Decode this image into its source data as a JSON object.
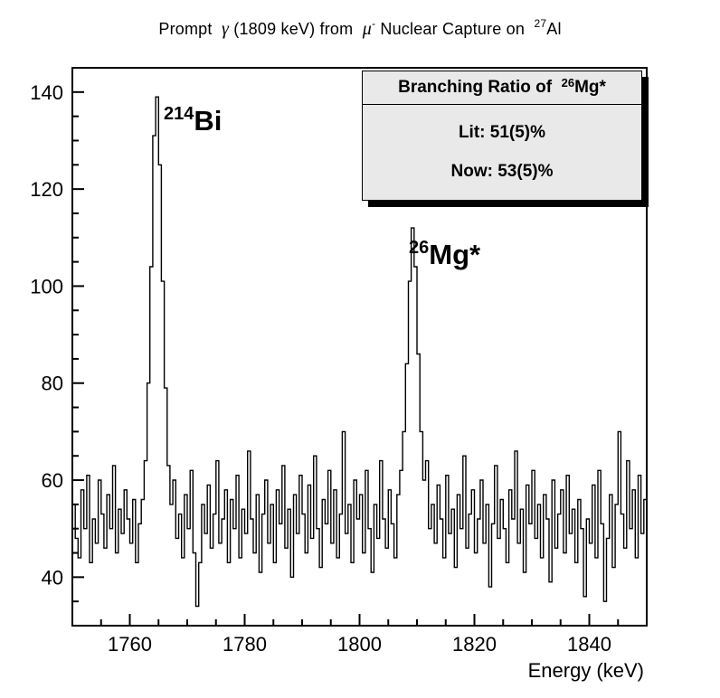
{
  "title": {
    "part1": "Prompt  ",
    "gamma": "γ",
    "part2": " (1809 keV) from  ",
    "mu": "μ",
    "mu_sup": "-",
    "part3": " Nuclear Capture on  ",
    "al_sup": "27",
    "part4": "Al"
  },
  "peak_labels": {
    "bi": {
      "sup": "214",
      "text": "Bi"
    },
    "mg": {
      "sup": "26",
      "text": "Mg*"
    }
  },
  "legend": {
    "header_prefix": "Branching Ratio of  ",
    "header_sup": "26",
    "header_text": "Mg*",
    "line1": "Lit: 51(5)%",
    "line2": "Now: 53(5)%",
    "fill_color": "#e9e9e9",
    "border_color": "#000000"
  },
  "chart_data": {
    "type": "bar",
    "subtype": "histogram-step",
    "title": "Prompt γ (1809 keV) from μ- Nuclear Capture on 27Al",
    "xlabel": "Energy (keV)",
    "ylabel": "",
    "xlim": [
      1750,
      1850
    ],
    "ylim": [
      30,
      145
    ],
    "grid": false,
    "line_color": "#000000",
    "x_start": 1750,
    "bin_width": 0.5,
    "x_major_ticks": [
      1760,
      1780,
      1800,
      1820,
      1840
    ],
    "x_minor_step": 5,
    "y_major_ticks": [
      40,
      60,
      80,
      100,
      120,
      140
    ],
    "y_minor_step": 5,
    "peaks": [
      {
        "isotope": "214Bi",
        "energy_kev": 1764.5,
        "peak_counts": 139
      },
      {
        "isotope": "26Mg*",
        "energy_kev": 1809,
        "peak_counts": 112
      }
    ],
    "baseline_counts": 52,
    "bins": [
      55,
      48,
      44,
      58,
      50,
      61,
      43,
      52,
      47,
      60,
      53,
      46,
      57,
      50,
      63,
      45,
      54,
      49,
      58,
      52,
      47,
      56,
      43,
      51,
      56,
      64,
      80,
      104,
      131,
      139,
      125,
      101,
      79,
      63,
      55,
      60,
      48,
      53,
      44,
      57,
      50,
      62,
      45,
      34,
      43,
      55,
      49,
      59,
      46,
      53,
      64,
      47,
      52,
      58,
      43,
      56,
      50,
      61,
      44,
      54,
      49,
      66,
      52,
      45,
      57,
      41,
      53,
      60,
      47,
      55,
      43,
      58,
      51,
      63,
      46,
      54,
      40,
      57,
      49,
      61,
      53,
      45,
      59,
      48,
      65,
      50,
      42,
      56,
      51,
      62,
      47,
      58,
      44,
      53,
      70,
      49,
      55,
      43,
      60,
      52,
      57,
      45,
      62,
      50,
      41,
      55,
      48,
      64,
      52,
      46,
      58,
      51,
      44,
      57,
      62,
      70,
      84,
      101,
      112,
      104,
      86,
      70,
      60,
      64,
      50,
      55,
      47,
      59,
      52,
      44,
      61,
      49,
      54,
      42,
      57,
      50,
      65,
      46,
      53,
      58,
      45,
      52,
      60,
      47,
      55,
      38,
      51,
      63,
      48,
      56,
      50,
      43,
      58,
      52,
      66,
      47,
      54,
      41,
      59,
      51,
      62,
      48,
      55,
      44,
      57,
      52,
      39,
      60,
      46,
      53,
      58,
      45,
      61,
      49,
      54,
      43,
      56,
      50,
      36,
      52,
      47,
      59,
      44,
      62,
      51,
      35,
      48,
      57,
      42,
      55,
      70,
      53,
      46,
      64,
      50,
      58,
      44,
      61,
      49,
      56
    ]
  }
}
